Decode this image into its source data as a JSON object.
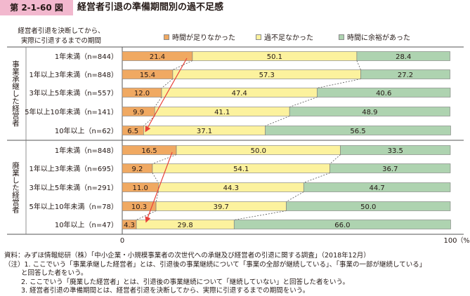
{
  "figure": {
    "label": "第 2-1-60 図",
    "title": "経営者引退の準備期間別の過不足感"
  },
  "chart_data": {
    "type": "bar",
    "stacked": "horizontal-100-percent",
    "period_caption": "経営者引退を決断してから、\n実際に引退するまでの期間",
    "groups": [
      {
        "name": "事業承継した経営者",
        "categories": [
          "1年未満（n=844）",
          "1年以上3年未満（n=848）",
          "3年以上5年未満（n=557）",
          "5年以上10年未満（n=141）",
          "10年以上（n=62）"
        ]
      },
      {
        "name": "廃業した経営者",
        "categories": [
          "1年未満（n=848）",
          "1年以上3年未満（n=695）",
          "3年以上5年未満（n=291）",
          "5年以上10年未満（n=78）",
          "10年以上（n=47）"
        ]
      }
    ],
    "series": [
      {
        "name": "時間が足りなかった",
        "color": "#f0a962",
        "values": [
          21.4,
          15.4,
          12.0,
          9.9,
          6.5,
          16.5,
          9.2,
          11.0,
          10.3,
          4.3
        ]
      },
      {
        "name": "過不足なかった",
        "color": "#fcf29e",
        "values": [
          50.1,
          57.3,
          47.4,
          41.1,
          37.1,
          50.0,
          54.1,
          44.3,
          39.7,
          29.8
        ]
      },
      {
        "name": "時間に余裕があった",
        "color": "#aed3b0",
        "values": [
          28.4,
          27.2,
          40.6,
          48.9,
          56.5,
          33.5,
          36.7,
          44.7,
          50.0,
          66.0
        ]
      }
    ],
    "value_labels": [
      [
        "21.4",
        "15.4",
        "12.0",
        "9.9",
        "6.5",
        "16.5",
        "9.2",
        "11.0",
        "10.3",
        "4.3"
      ],
      [
        "50.1",
        "57.3",
        "47.4",
        "41.1",
        "37.1",
        "50.0",
        "54.1",
        "44.3",
        "39.7",
        "29.8"
      ],
      [
        "28.4",
        "27.2",
        "40.6",
        "48.9",
        "56.5",
        "33.5",
        "36.7",
        "44.7",
        "50.0",
        "66.0"
      ]
    ],
    "xlim": [
      0,
      100
    ],
    "x_ticks": [
      "0",
      "100"
    ],
    "x_unit": "（%）",
    "legend_position": "top",
    "annotations": [
      "red arrow from 1年未満 to 10年以上 in each group, along the 時間が足りなかった segment",
      "dashed connector lines between segment boundaries of adjacent bars"
    ],
    "arrow_color": "#e8413a"
  },
  "notes": [
    "資料：みずほ情報総研（株）「中小企業・小規模事業者の次世代への承継及び経営者の引退に関する調査」（2018年12月）",
    "（注）1. ここでいう「事業承継した経営者」とは、引退後の事業継続について「事業の全部が継続している」、「事業の一部が継続している」",
    "と回答した者をいう。",
    "2. ここでいう「廃業した経営者」とは、引退後の事業継続について「継続していない」と回答した者をいう。",
    "3. 経営者引退の準備期間とは、経営者引退を決断してから、実際に引退するまでの期間をいう。"
  ]
}
